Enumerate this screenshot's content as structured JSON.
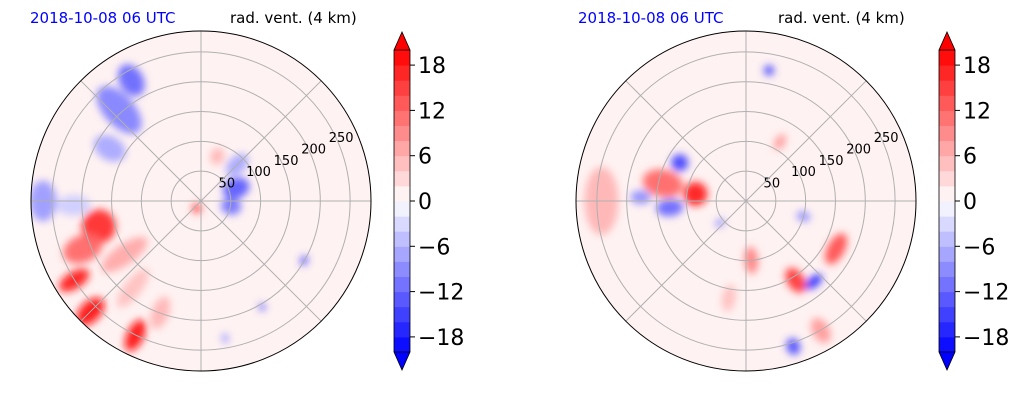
{
  "chart_data": [
    {
      "type": "heatmap",
      "subtype": "polar-radar-ppi",
      "title_left": "2018-10-08 06 UTC",
      "title_right": "rad. vent. (4 km)",
      "range_rings": [
        50,
        100,
        150,
        200,
        250
      ],
      "colorbar": {
        "ticks": [
          -18,
          -12,
          -6,
          0,
          6,
          12,
          18
        ],
        "tick_labels": [
          "−18",
          "−12",
          "−6",
          "0",
          "6",
          "12",
          "18"
        ],
        "vmin": -20,
        "vmax": 20,
        "step": 2,
        "extend": "both",
        "colormap": "bwr"
      },
      "features": [
        {
          "az": 318,
          "r": 0.72,
          "sx": 0.17,
          "sy": 0.09,
          "v": -10
        },
        {
          "az": 330,
          "r": 0.82,
          "sx": 0.1,
          "sy": 0.07,
          "v": -12
        },
        {
          "az": 300,
          "r": 0.62,
          "sx": 0.1,
          "sy": 0.07,
          "v": -7
        },
        {
          "az": 270,
          "r": 0.93,
          "sx": 0.08,
          "sy": 0.12,
          "v": -8
        },
        {
          "az": 268,
          "r": 0.75,
          "sx": 0.1,
          "sy": 0.06,
          "v": -4
        },
        {
          "az": 256,
          "r": 0.62,
          "sx": 0.1,
          "sy": 0.1,
          "v": 17
        },
        {
          "az": 248,
          "r": 0.75,
          "sx": 0.12,
          "sy": 0.08,
          "v": 12
        },
        {
          "az": 238,
          "r": 0.88,
          "sx": 0.1,
          "sy": 0.05,
          "v": 18
        },
        {
          "az": 225,
          "r": 0.92,
          "sx": 0.1,
          "sy": 0.06,
          "v": 19
        },
        {
          "az": 206,
          "r": 0.88,
          "sx": 0.1,
          "sy": 0.05,
          "v": 19
        },
        {
          "az": 235,
          "r": 0.55,
          "sx": 0.16,
          "sy": 0.06,
          "v": 7
        },
        {
          "az": 218,
          "r": 0.65,
          "sx": 0.14,
          "sy": 0.05,
          "v": 5
        },
        {
          "az": 200,
          "r": 0.7,
          "sx": 0.1,
          "sy": 0.05,
          "v": 6
        },
        {
          "az": 70,
          "r": 0.22,
          "sx": 0.08,
          "sy": 0.06,
          "v": -13
        },
        {
          "az": 100,
          "r": 0.18,
          "sx": 0.06,
          "sy": 0.05,
          "v": -11
        },
        {
          "az": 45,
          "r": 0.3,
          "sx": 0.08,
          "sy": 0.05,
          "v": -7
        },
        {
          "az": 20,
          "r": 0.28,
          "sx": 0.05,
          "sy": 0.04,
          "v": 6
        },
        {
          "az": 210,
          "r": 0.05,
          "sx": 0.03,
          "sy": 0.03,
          "v": 14
        },
        {
          "az": 150,
          "r": 0.72,
          "sx": 0.02,
          "sy": 0.02,
          "v": -14
        },
        {
          "az": 120,
          "r": 0.7,
          "sx": 0.02,
          "sy": 0.03,
          "v": -15
        },
        {
          "az": 170,
          "r": 0.82,
          "sx": 0.03,
          "sy": 0.02,
          "v": -8
        }
      ]
    },
    {
      "type": "heatmap",
      "subtype": "polar-radar-ppi",
      "title_left": "2018-10-08 06 UTC",
      "title_right": "rad. vent. (4 km)",
      "range_rings": [
        50,
        100,
        150,
        200,
        250
      ],
      "colorbar": {
        "ticks": [
          -18,
          -12,
          -6,
          0,
          6,
          12,
          18
        ],
        "tick_labels": [
          "−18",
          "−12",
          "−6",
          "0",
          "6",
          "12",
          "18"
        ],
        "vmin": -20,
        "vmax": 20,
        "step": 2,
        "extend": "both",
        "colormap": "bwr"
      },
      "features": [
        {
          "az": 282,
          "r": 0.5,
          "sx": 0.12,
          "sy": 0.08,
          "v": 12
        },
        {
          "az": 278,
          "r": 0.3,
          "sx": 0.07,
          "sy": 0.07,
          "v": 18
        },
        {
          "az": 300,
          "r": 0.45,
          "sx": 0.05,
          "sy": 0.05,
          "v": -15
        },
        {
          "az": 265,
          "r": 0.45,
          "sx": 0.08,
          "sy": 0.05,
          "v": -12
        },
        {
          "az": 272,
          "r": 0.62,
          "sx": 0.06,
          "sy": 0.04,
          "v": -9
        },
        {
          "az": 270,
          "r": 0.85,
          "sx": 0.1,
          "sy": 0.2,
          "v": 6
        },
        {
          "az": 118,
          "r": 0.6,
          "sx": 0.05,
          "sy": 0.1,
          "v": 14
        },
        {
          "az": 148,
          "r": 0.55,
          "sx": 0.08,
          "sy": 0.05,
          "v": 16
        },
        {
          "az": 140,
          "r": 0.62,
          "sx": 0.03,
          "sy": 0.06,
          "v": -17
        },
        {
          "az": 162,
          "r": 0.9,
          "sx": 0.05,
          "sy": 0.04,
          "v": -14
        },
        {
          "az": 150,
          "r": 0.88,
          "sx": 0.08,
          "sy": 0.05,
          "v": 8
        },
        {
          "az": 175,
          "r": 0.35,
          "sx": 0.08,
          "sy": 0.04,
          "v": 10
        },
        {
          "az": 190,
          "r": 0.58,
          "sx": 0.08,
          "sy": 0.04,
          "v": 5
        },
        {
          "az": 105,
          "r": 0.35,
          "sx": 0.04,
          "sy": 0.03,
          "v": -9
        },
        {
          "az": 230,
          "r": 0.2,
          "sx": 0.03,
          "sy": 0.02,
          "v": -10
        },
        {
          "az": 30,
          "r": 0.4,
          "sx": 0.05,
          "sy": 0.03,
          "v": 8
        },
        {
          "az": 10,
          "r": 0.78,
          "sx": 0.03,
          "sy": 0.03,
          "v": -15
        }
      ]
    }
  ]
}
